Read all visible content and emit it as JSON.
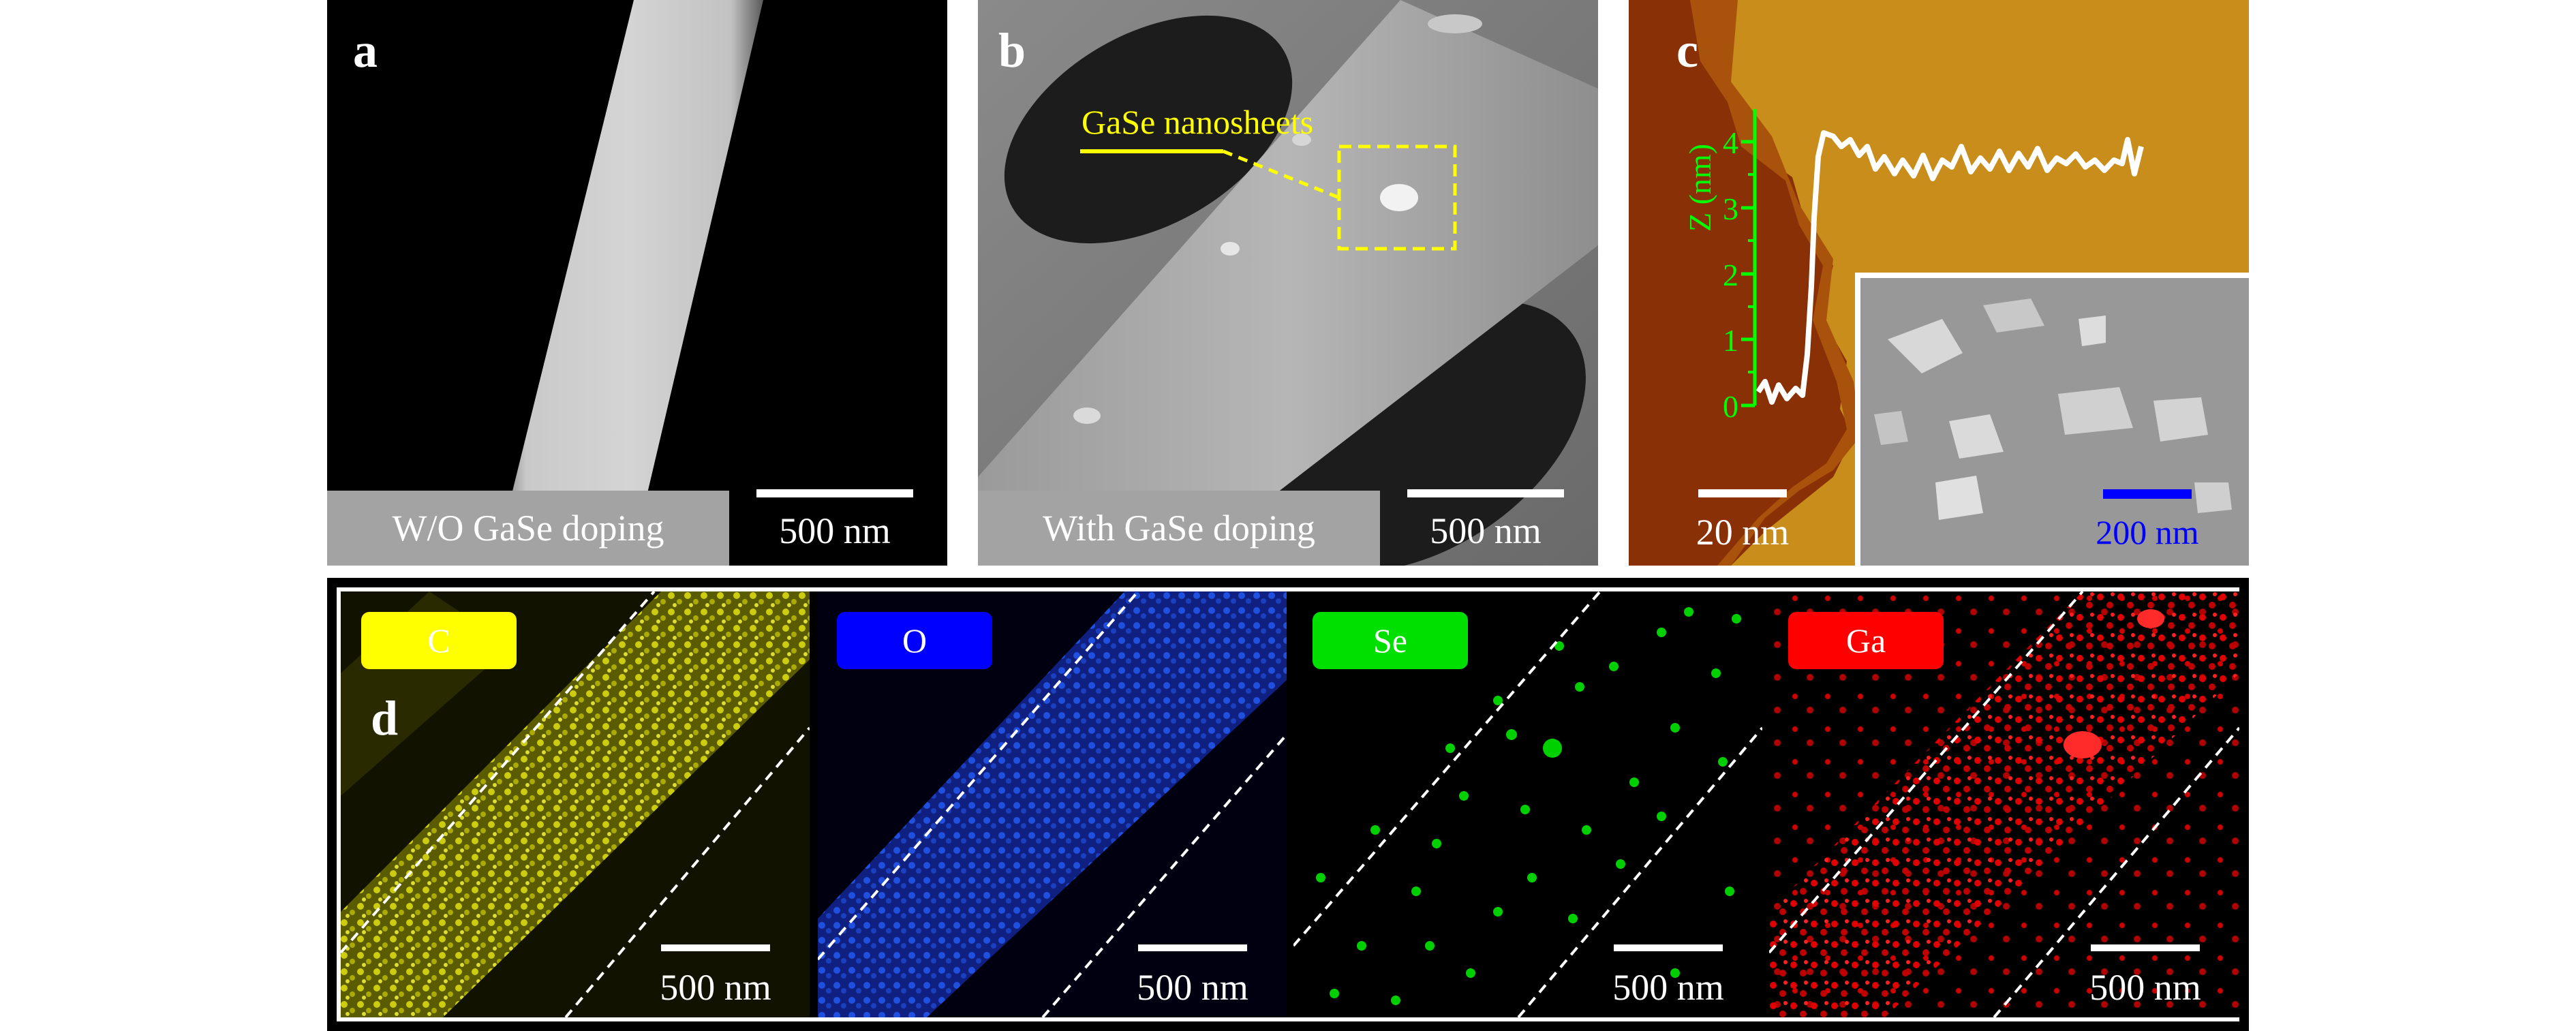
{
  "panels": {
    "a": {
      "letter": "a",
      "caption": "W/O GaSe doping",
      "scale": "500 nm"
    },
    "b": {
      "letter": "b",
      "caption": "With GaSe doping",
      "scale": "500 nm",
      "annotation": "GaSe nanosheets"
    },
    "c": {
      "letter": "c",
      "scale": "20 nm",
      "inset_scale": "200 nm",
      "axis_label": "Z (nm)",
      "ticks": [
        "0",
        "1",
        "2",
        "3",
        "4"
      ]
    },
    "d": {
      "letter": "d",
      "maps": [
        {
          "element": "C",
          "color": "#ffff00",
          "scale": "500 nm"
        },
        {
          "element": "O",
          "color": "#0000ff",
          "scale": "500 nm"
        },
        {
          "element": "Se",
          "color": "#00e000",
          "scale": "500 nm"
        },
        {
          "element": "Ga",
          "color": "#ff0000",
          "scale": "500 nm"
        }
      ]
    }
  }
}
